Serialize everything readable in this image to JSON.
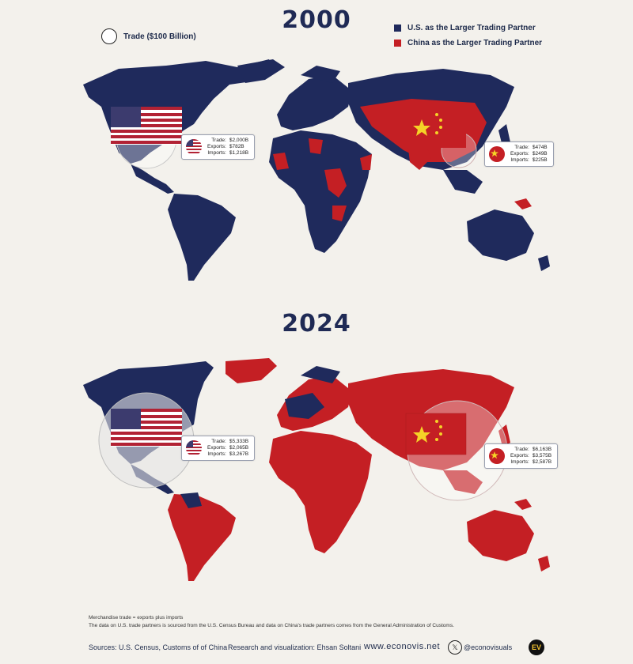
{
  "colors": {
    "us": "#1f2a5c",
    "china": "#c41f24",
    "background": "#f3f1ec"
  },
  "legend": {
    "trade_circle_label": "Trade ($100 Billion)",
    "us_label": "U.S. as the Larger Trading Partner",
    "china_label": "China as the Larger Trading Partner"
  },
  "maps": [
    {
      "year": "2000",
      "us": {
        "trade_label": "Trade:",
        "trade": "$2,000B",
        "exports_label": "Exports:",
        "exports": "$782B",
        "imports_label": "Imports:",
        "imports": "$1,218B",
        "trade_value_billion": 2000
      },
      "china": {
        "trade_label": "Trade:",
        "trade": "$474B",
        "exports_label": "Exports:",
        "exports": "$249B",
        "imports_label": "Imports:",
        "imports": "$225B",
        "trade_value_billion": 474
      }
    },
    {
      "year": "2024",
      "us": {
        "trade_label": "Trade:",
        "trade": "$5,333B",
        "exports_label": "Exports:",
        "exports": "$2,065B",
        "imports_label": "Imports:",
        "imports": "$3,267B",
        "trade_value_billion": 5333
      },
      "china": {
        "trade_label": "Trade:",
        "trade": "$6,163B",
        "exports_label": "Exports:",
        "exports": "$3,575B",
        "imports_label": "Imports:",
        "imports": "$2,587B",
        "trade_value_billion": 6163
      }
    }
  ],
  "footnotes": {
    "line1": "Merchandise trade = exports plus imports",
    "line2": "The data on U.S. trade partners is sourced from the U.S. Census Bureau and data on China's trade partners comes from the General Administration of Customs."
  },
  "footer": {
    "sources": "Sources: U.S. Census, Customs of of China",
    "research": "Research and visualization: Ehsan Soltani",
    "website": "www.econovis.net",
    "handle": "@econovisuals",
    "logo_text": "EV"
  }
}
